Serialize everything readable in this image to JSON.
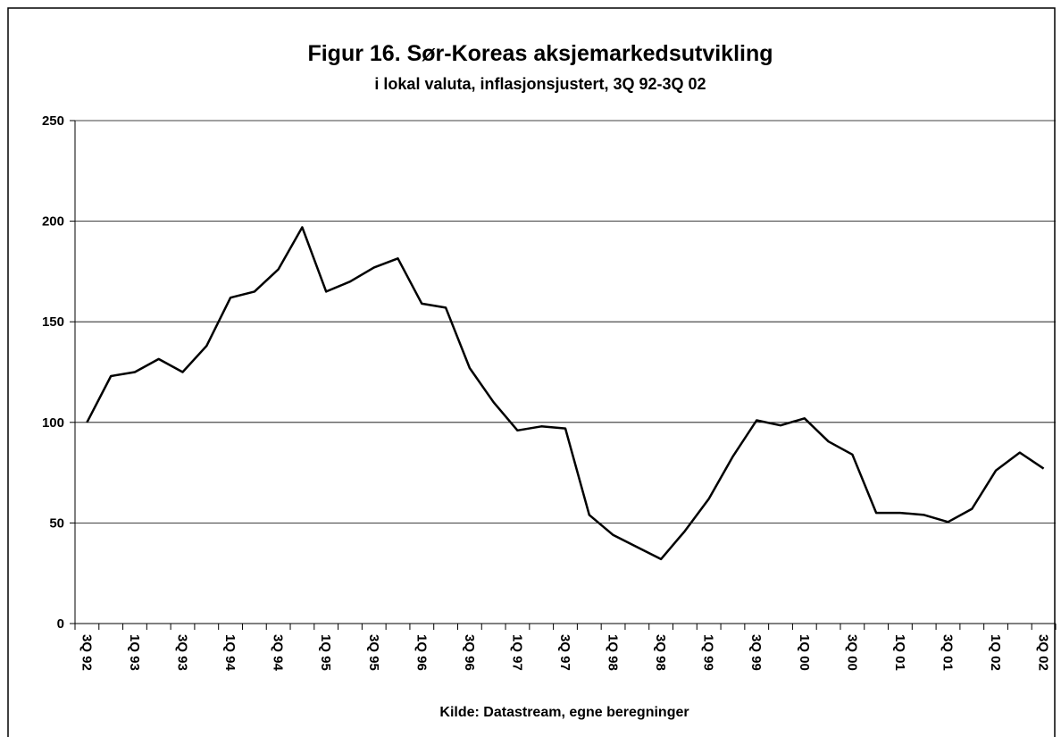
{
  "chart_data": {
    "type": "line",
    "title": "Figur 16. Sør-Koreas aksjemarkedsutvikling",
    "subtitle": "i lokal valuta, inflasjonsjustert, 3Q 92-3Q 02",
    "source": "Kilde: Datastream, egne beregninger",
    "categories": [
      "3Q 92",
      null,
      "1Q 93",
      null,
      "3Q 93",
      null,
      "1Q 94",
      null,
      "3Q 94",
      null,
      "1Q 95",
      null,
      "3Q 95",
      null,
      "1Q 96",
      null,
      "3Q 96",
      null,
      "1Q 97",
      null,
      "3Q 97",
      null,
      "1Q 98",
      null,
      "3Q 98",
      null,
      "1Q 99",
      null,
      "3Q 99",
      null,
      "1Q 00",
      null,
      "3Q 00",
      null,
      "1Q 01",
      null,
      "3Q 01",
      null,
      "1Q 02",
      null,
      "3Q 02"
    ],
    "values": [
      100,
      123,
      125,
      131.5,
      125,
      138,
      162,
      165,
      176,
      197,
      165,
      170,
      177,
      181.5,
      159,
      157,
      127,
      110,
      96,
      98,
      97,
      54,
      44,
      38,
      32,
      46,
      62,
      83,
      101,
      98.5,
      102,
      90.5,
      84,
      55,
      55,
      54,
      50.5,
      57,
      76,
      85,
      77
    ],
    "color": "#000000",
    "ylim": [
      0,
      250
    ],
    "yticks": [
      0,
      50,
      100,
      150,
      200,
      250
    ],
    "grid": true
  }
}
